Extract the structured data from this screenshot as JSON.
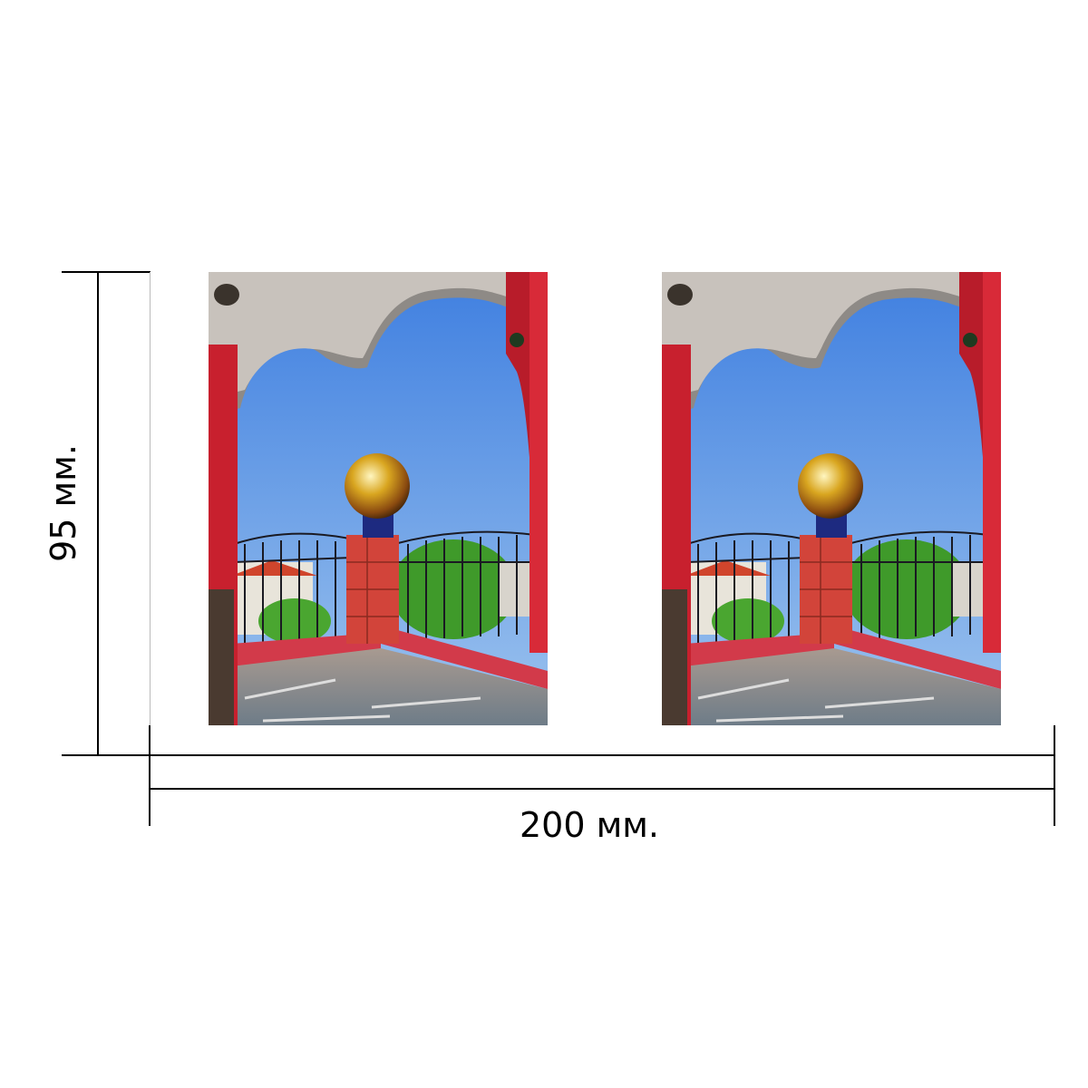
{
  "dimensions": {
    "width_label": "200 мм.",
    "height_label": "95 мм."
  },
  "photos": [
    {
      "subject": "balcony-arch-golden-sphere"
    },
    {
      "subject": "balcony-arch-golden-sphere"
    }
  ],
  "colors": {
    "line": "#000000",
    "sky": "#5b93e0",
    "pillar": "#c8202e",
    "sphere": "#d9a620"
  }
}
